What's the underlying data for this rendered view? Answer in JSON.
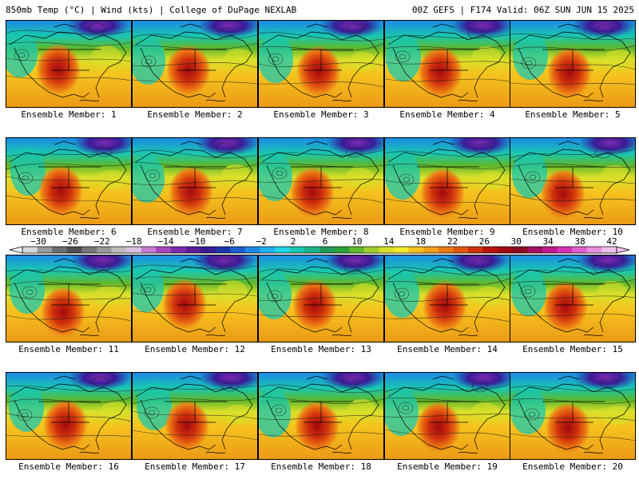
{
  "header": {
    "title_left": "850mb Temp (°C) | Wind (kts) | College of DuPage NEXLAB",
    "title_right": "00Z GEFS | F174 Valid: 06Z SUN JUN 15 2025"
  },
  "label_prefix": "Ensemble Member: ",
  "members": [
    1,
    2,
    3,
    4,
    5,
    6,
    7,
    8,
    9,
    10,
    11,
    12,
    13,
    14,
    15,
    16,
    17,
    18,
    19,
    20
  ],
  "colorbar": {
    "ticks": [
      "−30",
      "−26",
      "−22",
      "−18",
      "−14",
      "−10",
      "−6",
      "−2",
      "2",
      "6",
      "10",
      "14",
      "18",
      "22",
      "26",
      "30",
      "34",
      "38",
      "42"
    ],
    "colors": [
      "#d8d8d8",
      "#9a9a9a",
      "#6e6e6e",
      "#4f4f4f",
      "#777777",
      "#9a9a9a",
      "#bcbcbc",
      "#d9c2df",
      "#c77ad0",
      "#a745bd",
      "#7c2bb0",
      "#5a1d9c",
      "#3a1c96",
      "#1e36a8",
      "#1a5ed0",
      "#1e8ae6",
      "#1fb0f0",
      "#1ed4e6",
      "#19c7b0",
      "#1cb38a",
      "#1e9a5a",
      "#2aa03a",
      "#5fb82a",
      "#9fd02a",
      "#d8e02a",
      "#f2ea2a",
      "#f5c41e",
      "#f2a01a",
      "#ec7a14",
      "#e2560f",
      "#d0300c",
      "#b8140c",
      "#a00a10",
      "#8c0a20",
      "#a01060",
      "#c01890",
      "#d830b8",
      "#e060d0",
      "#e890e0",
      "#f0c0ec"
    ]
  }
}
